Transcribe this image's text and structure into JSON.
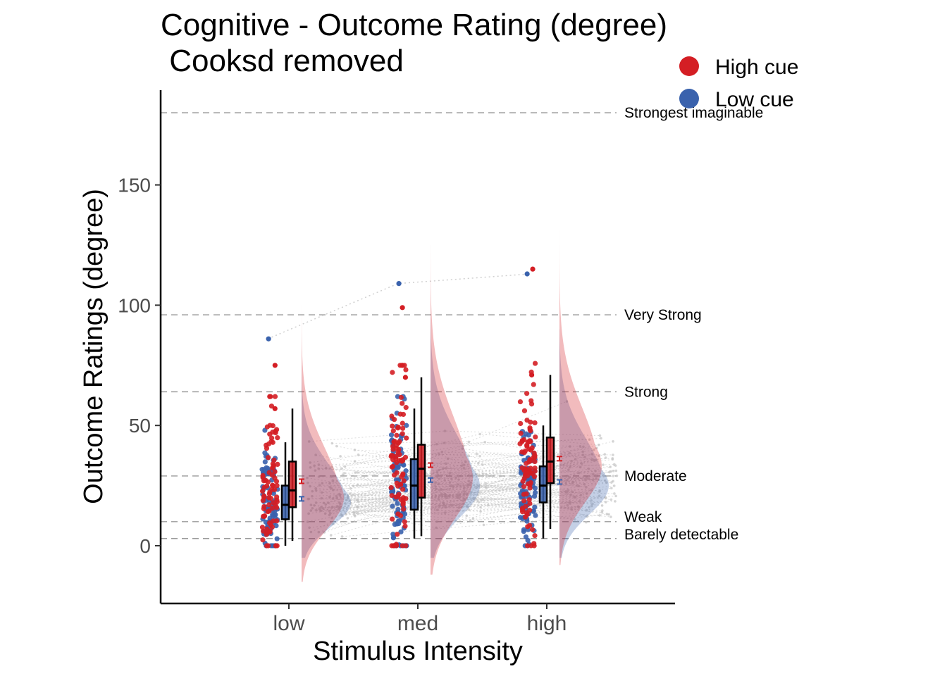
{
  "chart_data": {
    "type": "raincloud",
    "title_line1": "Cognitive - Outcome Rating (degree)",
    "title_line2": " Cooksd removed",
    "xlabel": "Stimulus Intensity",
    "ylabel": "Outcome Ratings (degree)",
    "categories": [
      "low",
      "med",
      "high"
    ],
    "ylim": [
      -24,
      190
    ],
    "yticks": [
      0,
      50,
      100,
      150
    ],
    "grid": false,
    "legend_position": "top-right",
    "colors": {
      "high_cue": "#d41e24",
      "low_cue": "#3a62ad",
      "dots_gray": "#c4c4c4"
    },
    "series": [
      {
        "name": "High cue",
        "key": "high",
        "mean": [
          26.8,
          33.5,
          36.2
        ],
        "box": [
          {
            "q1": 16,
            "median": 23,
            "q3": 35,
            "whisker_low": 2,
            "whisker_high": 57
          },
          {
            "q1": 20,
            "median": 32,
            "q3": 42,
            "whisker_low": 4,
            "whisker_high": 70
          },
          {
            "q1": 26,
            "median": 35,
            "q3": 45,
            "whisker_low": 7,
            "whisker_high": 71
          }
        ],
        "density": [
          {
            "mode": 20,
            "sd": 13,
            "min": -15,
            "max": 100
          },
          {
            "mode": 28,
            "sd": 16,
            "min": -12,
            "max": 125
          },
          {
            "mode": 33,
            "sd": 15,
            "min": -8,
            "max": 131
          }
        ],
        "outliers": [
          [
            75,
            57
          ],
          [
            99,
            70
          ],
          [
            115,
            71
          ]
        ]
      },
      {
        "name": "Low cue",
        "key": "low",
        "mean": [
          19.5,
          27.3,
          26.5
        ],
        "box": [
          {
            "q1": 11,
            "median": 17,
            "q3": 25,
            "whisker_low": 0,
            "whisker_high": 43
          },
          {
            "q1": 15,
            "median": 25,
            "q3": 36,
            "whisker_low": 3,
            "whisker_high": 57
          },
          {
            "q1": 18,
            "median": 25,
            "q3": 33,
            "whisker_low": 3,
            "whisker_high": 50
          }
        ],
        "density": [
          {
            "mode": 18,
            "sd": 10,
            "min": -5,
            "max": 75
          },
          {
            "mode": 25,
            "sd": 13,
            "min": -5,
            "max": 95
          },
          {
            "mode": 25,
            "sd": 12,
            "min": -5,
            "max": 90
          }
        ],
        "outliers": [
          [
            86
          ],
          [
            109
          ],
          [
            113
          ]
        ]
      }
    ],
    "reference_lines": [
      {
        "label": "Barely detectable",
        "value": 3
      },
      {
        "label": "Weak",
        "value": 10
      },
      {
        "label": "Moderate",
        "value": 29
      },
      {
        "label": "Strong",
        "value": 64
      },
      {
        "label": "Very Strong",
        "value": 96
      },
      {
        "label": "Strongest imaginable",
        "value": 180
      }
    ]
  }
}
